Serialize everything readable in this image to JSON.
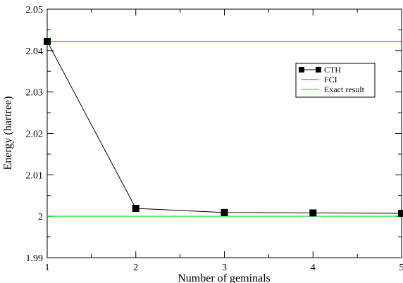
{
  "chart_data": {
    "type": "line",
    "title": "",
    "xlabel": "Number of geminals",
    "ylabel": "Energy (hartree)",
    "xlim": [
      1,
      5
    ],
    "ylim": [
      1.99,
      2.05
    ],
    "x_ticks": [
      1,
      2,
      3,
      4,
      5
    ],
    "x_tick_labels": [
      "1",
      "2",
      "3",
      "4",
      "5"
    ],
    "y_ticks": [
      1.99,
      2.0,
      2.01,
      2.02,
      2.03,
      2.04,
      2.05
    ],
    "y_tick_labels": [
      "1.99",
      "2",
      "2.01",
      "2.02",
      "2.03",
      "2.04",
      "2.05"
    ],
    "grid": false,
    "legend_position": "top-right",
    "series": [
      {
        "name": "CTH",
        "color": "#000000",
        "marker": "square",
        "x": [
          1,
          2,
          3,
          4,
          5
        ],
        "values": [
          2.0422,
          2.0019,
          2.0009,
          2.0008,
          2.0007
        ]
      },
      {
        "name": "FCI",
        "color": "#ff0000",
        "marker": "none",
        "x": [
          1,
          5
        ],
        "values": [
          2.0422,
          2.0422
        ]
      },
      {
        "name": "Exact result",
        "color": "#00dd00",
        "marker": "none",
        "x": [
          1,
          5
        ],
        "values": [
          2.0,
          2.0
        ]
      }
    ]
  }
}
